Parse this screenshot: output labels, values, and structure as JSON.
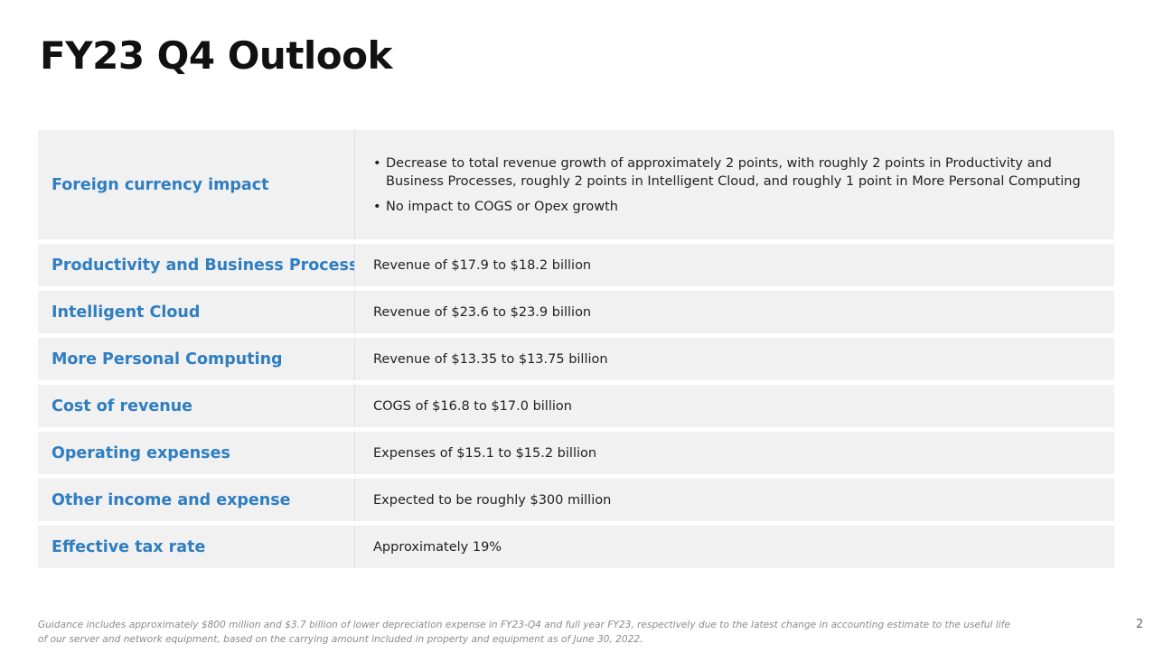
{
  "slide": {
    "title": "FY23 Q4 Outlook",
    "page_number": "2"
  },
  "colors": {
    "label_text": "#2f7ec1",
    "row_background": "#f1f1f1",
    "body_text": "#222222",
    "footnote_text": "#8a8a8a"
  },
  "table": {
    "rows": [
      {
        "label": "Foreign currency impact",
        "bullets": [
          {
            "lines": [
              "Decrease to total revenue growth of approximately 2 points, with roughly 2 points in Productivity and",
              "Business Processes, roughly 2 points in Intelligent Cloud, and roughly 1 point in More Personal Computing"
            ]
          },
          {
            "lines": [
              "No impact to COGS or Opex growth"
            ]
          }
        ]
      },
      {
        "label": "Productivity and Business Processes",
        "value": "Revenue of $17.9 to $18.2 billion"
      },
      {
        "label": "Intelligent Cloud",
        "value": "Revenue of $23.6 to $23.9 billion"
      },
      {
        "label": "More Personal Computing",
        "value": "Revenue of $13.35 to $13.75 billion"
      },
      {
        "label": "Cost of revenue",
        "value": "COGS of $16.8 to $17.0 billion"
      },
      {
        "label": "Operating expenses",
        "value": "Expenses of $15.1 to $15.2 billion"
      },
      {
        "label": "Other income and expense",
        "value": "Expected to be roughly $300 million"
      },
      {
        "label": "Effective tax rate",
        "value": "Approximately 19%"
      }
    ]
  },
  "footnote": {
    "lines": [
      "Guidance includes approximately $800 million and $3.7 billion of lower depreciation expense in FY23-Q4 and full year FY23, respectively due to the latest change in accounting estimate to the useful life",
      "of our server and network equipment, based on the carrying amount included in property and equipment as of June 30, 2022."
    ]
  }
}
